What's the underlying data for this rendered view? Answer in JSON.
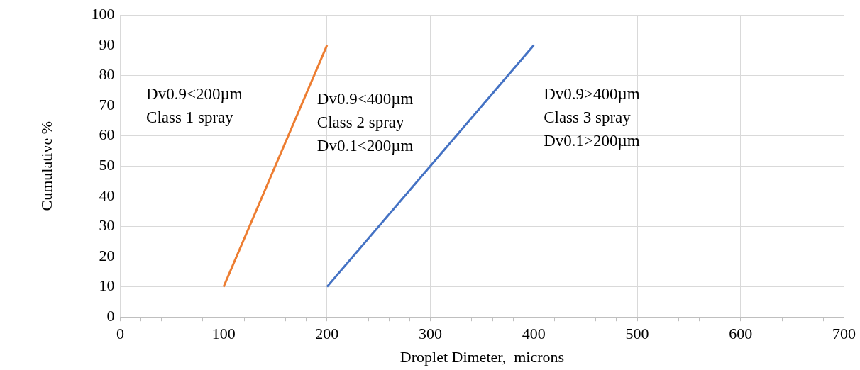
{
  "chart_data": {
    "type": "line",
    "xlabel": "Droplet Dimeter,  microns",
    "ylabel": "Cumulative %",
    "xlim": [
      0,
      700
    ],
    "ylim": [
      0,
      100
    ],
    "xticks": [
      0,
      {
        "value": 20,
        "label": null
      },
      {
        "value": 40,
        "label": null
      },
      {
        "value": 60,
        "label": null
      },
      {
        "value": 80,
        "label": null
      },
      100,
      {
        "value": 120,
        "label": null
      },
      {
        "value": 140,
        "label": null
      },
      {
        "value": 160,
        "label": null
      },
      {
        "value": 180,
        "label": null
      },
      200,
      {
        "value": 220,
        "label": null
      },
      {
        "value": 240,
        "label": null
      },
      {
        "value": 260,
        "label": null
      },
      {
        "value": 280,
        "label": null
      },
      300,
      {
        "value": 320,
        "label": null
      },
      {
        "value": 340,
        "label": null
      },
      {
        "value": 360,
        "label": null
      },
      {
        "value": 380,
        "label": null
      },
      400,
      {
        "value": 420,
        "label": null
      },
      {
        "value": 440,
        "label": null
      },
      {
        "value": 460,
        "label": null
      },
      {
        "value": 480,
        "label": null
      },
      500,
      {
        "value": 520,
        "label": null
      },
      {
        "value": 540,
        "label": null
      },
      {
        "value": 560,
        "label": null
      },
      {
        "value": 580,
        "label": null
      },
      600,
      {
        "value": 620,
        "label": null
      },
      {
        "value": 640,
        "label": null
      },
      {
        "value": 660,
        "label": null
      },
      {
        "value": 680,
        "label": null
      },
      700
    ],
    "yticks": [
      0,
      10,
      20,
      30,
      40,
      50,
      60,
      70,
      80,
      90,
      100
    ],
    "grid": true,
    "marker": "none",
    "line_style": "solid",
    "series": [
      {
        "color": "#ed7d31",
        "x": [
          100,
          200
        ],
        "values": [
          10,
          90
        ]
      },
      {
        "color": "#4472c4",
        "x": [
          200,
          400
        ],
        "values": [
          10,
          90
        ]
      }
    ],
    "annotations": [
      "Dv0.9<200µm\nClass 1 spray",
      "Dv0.9<400µm\nClass 2 spray\nDv0.1<200µm",
      "Dv0.9>400µm\nClass 3 spray\nDv0.1>200µm"
    ]
  }
}
